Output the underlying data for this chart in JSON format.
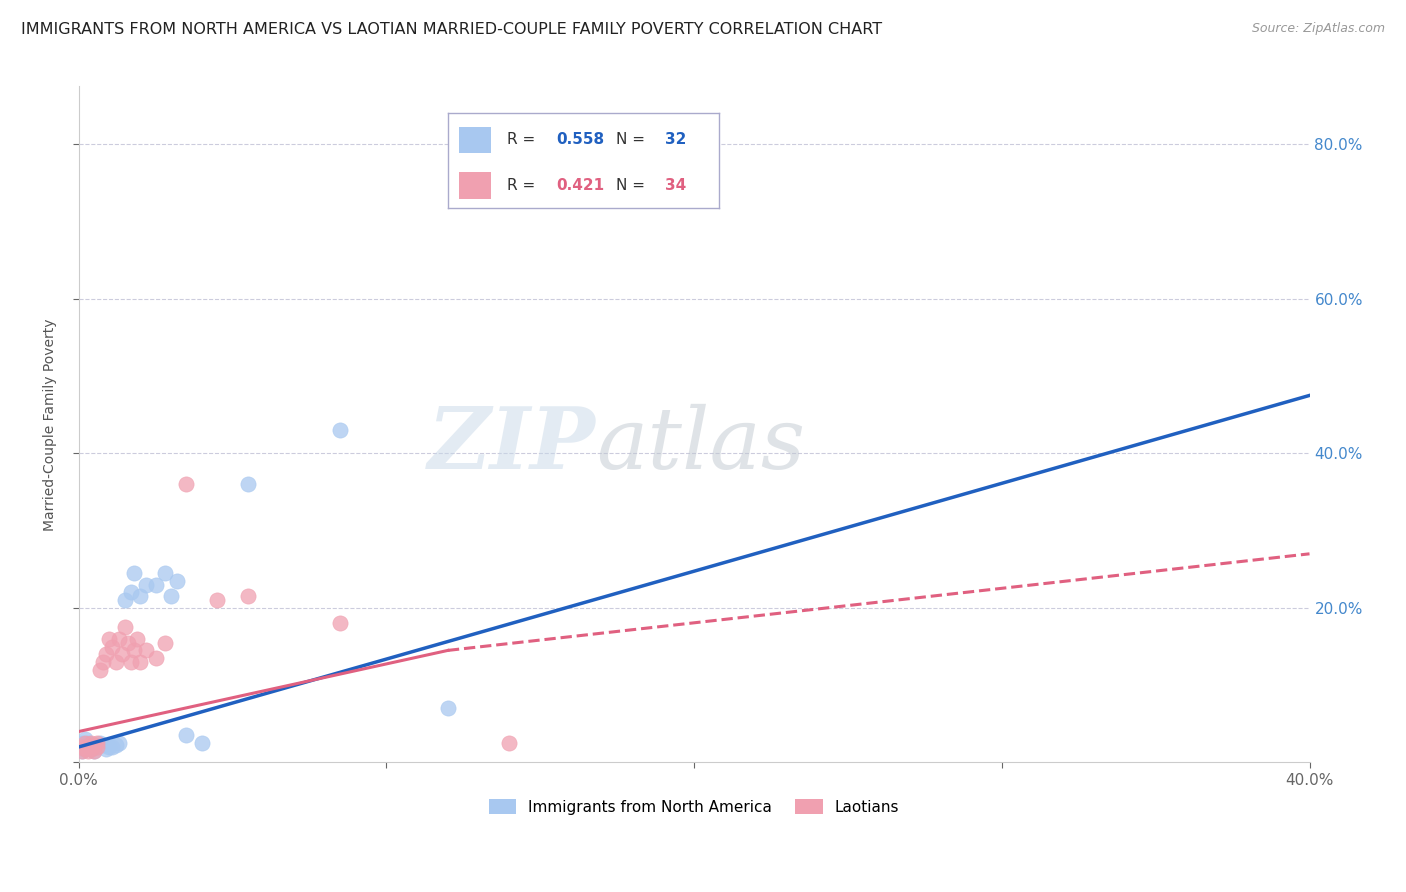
{
  "title": "IMMIGRANTS FROM NORTH AMERICA VS LAOTIAN MARRIED-COUPLE FAMILY POVERTY CORRELATION CHART",
  "source": "Source: ZipAtlas.com",
  "ylabel": "Married-Couple Family Poverty",
  "watermark_zip": "ZIP",
  "watermark_atlas": "atlas",
  "xlim": [
    0.0,
    0.4
  ],
  "ylim": [
    0.0,
    0.875
  ],
  "xticks": [
    0.0,
    0.1,
    0.2,
    0.3,
    0.4
  ],
  "xticklabels": [
    "0.0%",
    "",
    "",
    "",
    "40.0%"
  ],
  "yticks": [
    0.0,
    0.2,
    0.4,
    0.6,
    0.8
  ],
  "yticklabels": [
    "",
    "20.0%",
    "40.0%",
    "60.0%",
    "80.0%"
  ],
  "legend_R1": "0.558",
  "legend_N1": "32",
  "legend_R2": "0.421",
  "legend_N2": "34",
  "blue_color": "#A8C8F0",
  "pink_color": "#F0A0B0",
  "blue_line_color": "#2060C0",
  "pink_line_color": "#E06080",
  "blue_scatter": [
    [
      0.001,
      0.015
    ],
    [
      0.001,
      0.025
    ],
    [
      0.002,
      0.018
    ],
    [
      0.002,
      0.03
    ],
    [
      0.003,
      0.02
    ],
    [
      0.003,
      0.025
    ],
    [
      0.004,
      0.022
    ],
    [
      0.004,
      0.018
    ],
    [
      0.005,
      0.02
    ],
    [
      0.005,
      0.015
    ],
    [
      0.006,
      0.022
    ],
    [
      0.007,
      0.025
    ],
    [
      0.008,
      0.022
    ],
    [
      0.009,
      0.018
    ],
    [
      0.01,
      0.02
    ],
    [
      0.011,
      0.02
    ],
    [
      0.012,
      0.022
    ],
    [
      0.013,
      0.025
    ],
    [
      0.015,
      0.21
    ],
    [
      0.017,
      0.22
    ],
    [
      0.018,
      0.245
    ],
    [
      0.02,
      0.215
    ],
    [
      0.022,
      0.23
    ],
    [
      0.025,
      0.23
    ],
    [
      0.028,
      0.245
    ],
    [
      0.03,
      0.215
    ],
    [
      0.032,
      0.235
    ],
    [
      0.035,
      0.035
    ],
    [
      0.04,
      0.025
    ],
    [
      0.055,
      0.36
    ],
    [
      0.085,
      0.43
    ],
    [
      0.12,
      0.07
    ]
  ],
  "pink_scatter": [
    [
      0.001,
      0.015
    ],
    [
      0.001,
      0.02
    ],
    [
      0.002,
      0.025
    ],
    [
      0.002,
      0.018
    ],
    [
      0.003,
      0.02
    ],
    [
      0.003,
      0.015
    ],
    [
      0.004,
      0.025
    ],
    [
      0.004,
      0.018
    ],
    [
      0.005,
      0.022
    ],
    [
      0.005,
      0.015
    ],
    [
      0.006,
      0.025
    ],
    [
      0.006,
      0.02
    ],
    [
      0.007,
      0.12
    ],
    [
      0.008,
      0.13
    ],
    [
      0.009,
      0.14
    ],
    [
      0.01,
      0.16
    ],
    [
      0.011,
      0.15
    ],
    [
      0.012,
      0.13
    ],
    [
      0.013,
      0.16
    ],
    [
      0.014,
      0.14
    ],
    [
      0.015,
      0.175
    ],
    [
      0.016,
      0.155
    ],
    [
      0.017,
      0.13
    ],
    [
      0.018,
      0.145
    ],
    [
      0.019,
      0.16
    ],
    [
      0.02,
      0.13
    ],
    [
      0.022,
      0.145
    ],
    [
      0.025,
      0.135
    ],
    [
      0.028,
      0.155
    ],
    [
      0.035,
      0.36
    ],
    [
      0.045,
      0.21
    ],
    [
      0.055,
      0.215
    ],
    [
      0.085,
      0.18
    ],
    [
      0.14,
      0.025
    ]
  ],
  "blue_line": [
    [
      0.0,
      0.02
    ],
    [
      0.4,
      0.475
    ]
  ],
  "pink_line_solid": [
    [
      0.0,
      0.04
    ],
    [
      0.12,
      0.145
    ]
  ],
  "pink_line_dashed": [
    [
      0.12,
      0.145
    ],
    [
      0.4,
      0.27
    ]
  ],
  "ytick_right_color": "#4488CC",
  "background_color": "#FFFFFF",
  "grid_color": "#CCCCDD",
  "title_fontsize": 12,
  "axis_fontsize": 10
}
